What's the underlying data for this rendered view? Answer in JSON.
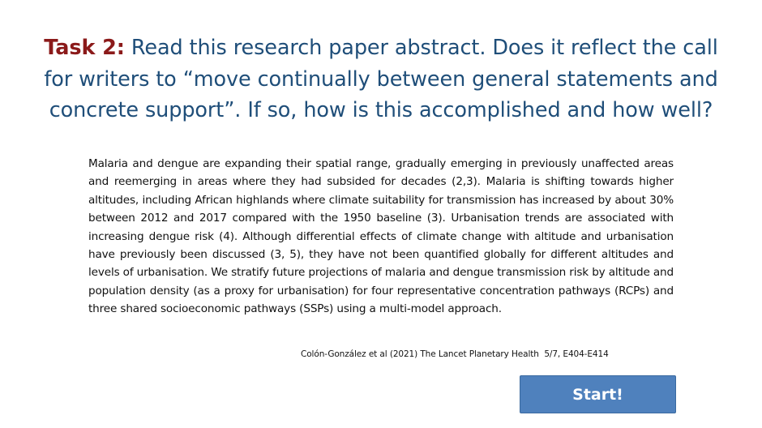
{
  "title": {
    "task_label": "Task 2:",
    "text": " Read this research paper abstract. Does it reflect the call for writers to “move continually between general statements and concrete support”. If so, how is this accomplished and how well?"
  },
  "abstract": {
    "text": "Malaria and dengue are expanding their spatial range, gradually emerging in previously unaffected areas and reemerging in areas where they had subsided for decades (2,3). Malaria is shifting towards higher altitudes, including African highlands where climate suitability for transmission has increased by about 30% between 2012 and 2017 compared with the 1950 baseline (3). Urbanisation trends are associated with increasing dengue risk (4). Although differential effects of climate change with altitude and urbanisation have previously been discussed (3, 5), they have not been quantified globally for different altitudes and levels of urbanisation. We stratify future projections of malaria and dengue transmission risk by altitude and population density (as a proxy for urbanisation) for four representative concentration pathways (RCPs) and three shared socioeconomic pathways (SSPs) using a multi-model approach."
  },
  "citation": {
    "text": "Colón-González et al (2021) The Lancet Planetary Health  5/7, E404-E414"
  },
  "start_button": {
    "label": "Start!"
  },
  "colors": {
    "title_text": "#1f4e79",
    "task_label": "#8b1a1a",
    "button_bg": "#4f81bd",
    "button_text": "#ffffff"
  }
}
